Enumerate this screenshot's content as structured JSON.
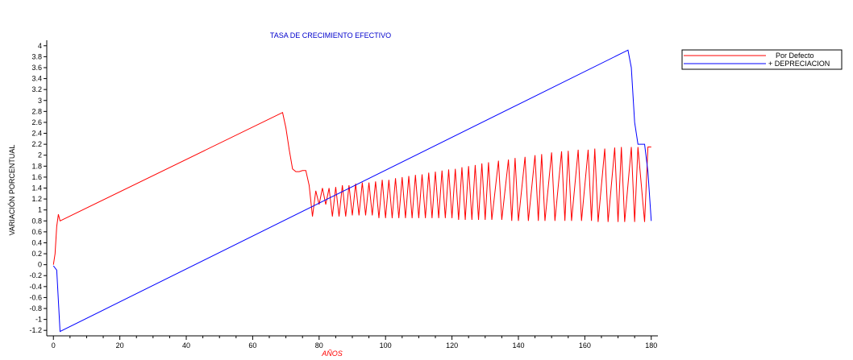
{
  "chart_data": {
    "type": "line",
    "title": "TASA DE CRECIMIENTO EFECTIVO",
    "xlabel": "AÑOS",
    "ylabel": "VARIACIÓN PORCENTUAL",
    "xlim": [
      -2,
      182
    ],
    "ylim": [
      -1.3,
      4.1
    ],
    "xticks": [
      0,
      20,
      40,
      60,
      80,
      100,
      120,
      140,
      160,
      180
    ],
    "yticks": [
      -1.2,
      -1,
      -0.8,
      -0.6,
      -0.4,
      -0.2,
      0,
      0.2,
      0.4,
      0.6,
      0.8,
      1,
      1.2,
      1.4,
      1.6,
      1.8,
      2,
      2.2,
      2.4,
      2.6,
      2.8,
      3,
      3.2,
      3.4,
      3.6,
      3.8,
      4
    ],
    "ytick_labels": [
      "-1.2",
      "-1",
      "-0.8",
      "-0.6",
      "-0.4",
      "-0.2",
      "0",
      "0.2",
      "0.4",
      "0.6",
      "0.8",
      "1",
      "1.2",
      "1.4",
      "1.6",
      "1.8",
      "2",
      "2.2",
      "2.4",
      "2.6",
      "2.8",
      "3",
      "3.2",
      "3.4",
      "3.6",
      "3.8",
      "4"
    ],
    "grid": false,
    "legend": "top-right",
    "series": [
      {
        "name": "Por Defecto",
        "color": "#ff0000",
        "x": [
          0,
          0.5,
          1,
          1.5,
          2,
          69,
          70,
          71,
          72,
          73,
          74,
          75,
          76,
          77,
          78,
          79,
          80,
          81,
          82,
          83,
          84,
          85,
          86,
          87,
          88,
          89,
          90,
          91,
          92,
          93,
          94,
          95,
          96,
          97,
          98,
          99,
          100,
          101,
          102,
          103,
          104,
          105,
          106,
          107,
          108,
          109,
          110,
          111,
          112,
          113,
          114,
          115,
          116,
          117,
          118,
          119,
          120,
          121,
          122,
          123,
          124,
          125,
          126,
          127,
          128,
          129,
          130,
          131,
          132,
          134,
          135,
          137,
          138,
          139,
          140,
          142,
          143,
          145,
          146,
          147,
          148,
          150,
          151,
          153,
          154,
          155,
          156,
          158,
          159,
          161,
          162,
          163,
          164,
          166,
          167,
          169,
          170,
          171,
          172,
          174,
          175,
          176,
          178,
          179,
          180
        ],
        "y": [
          0,
          0.2,
          0.7,
          0.92,
          0.8,
          2.78,
          2.5,
          2.1,
          1.75,
          1.7,
          1.7,
          1.72,
          1.72,
          1.45,
          0.88,
          1.35,
          1.1,
          1.4,
          1.1,
          1.4,
          0.88,
          1.42,
          0.88,
          1.45,
          0.88,
          1.45,
          0.9,
          1.48,
          0.9,
          1.5,
          0.9,
          1.5,
          0.9,
          1.52,
          0.85,
          1.55,
          0.85,
          1.55,
          0.85,
          1.58,
          0.85,
          1.6,
          0.85,
          1.62,
          0.85,
          1.64,
          0.85,
          1.65,
          0.85,
          1.68,
          0.85,
          1.7,
          0.85,
          1.72,
          0.85,
          1.74,
          0.85,
          1.75,
          0.82,
          1.78,
          0.82,
          1.8,
          0.82,
          1.82,
          0.82,
          1.85,
          0.82,
          1.87,
          0.82,
          1.9,
          0.82,
          1.92,
          0.8,
          1.95,
          0.8,
          1.97,
          0.8,
          2.0,
          0.8,
          2.02,
          0.8,
          2.05,
          0.8,
          2.07,
          0.8,
          2.08,
          0.8,
          2.1,
          0.8,
          2.1,
          0.8,
          2.12,
          0.78,
          2.12,
          0.78,
          2.14,
          0.78,
          2.15,
          0.78,
          2.15,
          0.78,
          2.15,
          0.78,
          2.15,
          2.15
        ]
      },
      {
        "name": "+ DEPRECIACION",
        "color": "#0000ff",
        "x": [
          0,
          1,
          2,
          173,
          174,
          175,
          176,
          177,
          178,
          179,
          180
        ],
        "y": [
          -0.02,
          -0.1,
          -1.22,
          3.92,
          3.6,
          2.6,
          2.2,
          2.2,
          2.2,
          1.7,
          0.8
        ]
      }
    ]
  }
}
